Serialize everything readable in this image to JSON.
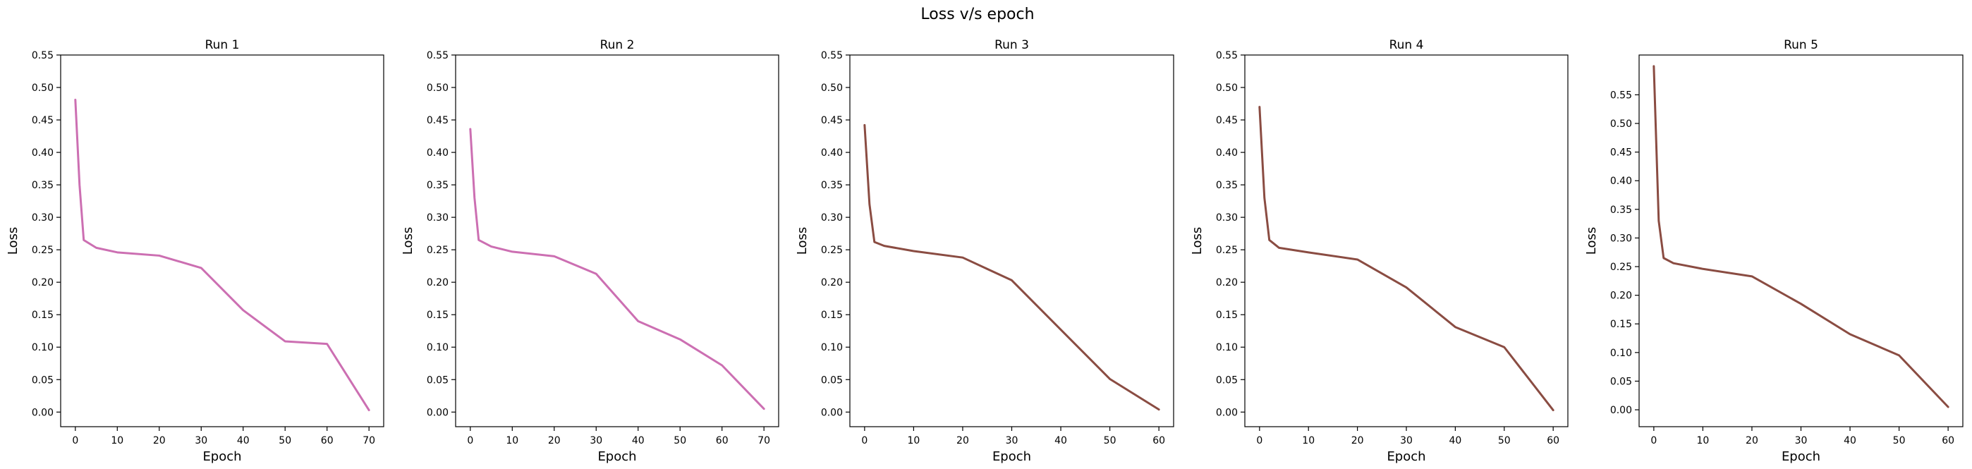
{
  "figure": {
    "title": "Loss v/s epoch"
  },
  "chart_data": [
    {
      "type": "line",
      "title": "Run 1",
      "xlabel": "Epoch",
      "ylabel": "Loss",
      "xlim": [
        -3.5,
        73.5
      ],
      "ylim": [
        -0.0225,
        0.55
      ],
      "xticks": [
        0,
        10,
        20,
        30,
        40,
        50,
        60,
        70
      ],
      "yticks": [
        0.0,
        0.05,
        0.1,
        0.15,
        0.2,
        0.25,
        0.3,
        0.35,
        0.4,
        0.45,
        0.5,
        0.55
      ],
      "grid": false,
      "color": "#cc6fb2",
      "series": [
        {
          "x": [
            0,
            1,
            2,
            5,
            10,
            20,
            30,
            40,
            50,
            60,
            70
          ],
          "values": [
            0.481,
            0.35,
            0.265,
            0.253,
            0.246,
            0.241,
            0.222,
            0.157,
            0.109,
            0.105,
            0.003
          ]
        }
      ]
    },
    {
      "type": "line",
      "title": "Run 2",
      "xlabel": "Epoch",
      "ylabel": "Loss",
      "xlim": [
        -3.5,
        73.5
      ],
      "ylim": [
        -0.0225,
        0.55
      ],
      "xticks": [
        0,
        10,
        20,
        30,
        40,
        50,
        60,
        70
      ],
      "yticks": [
        0.0,
        0.05,
        0.1,
        0.15,
        0.2,
        0.25,
        0.3,
        0.35,
        0.4,
        0.45,
        0.5,
        0.55
      ],
      "grid": false,
      "color": "#cc6fb2",
      "series": [
        {
          "x": [
            0,
            1,
            2,
            5,
            10,
            20,
            30,
            40,
            50,
            60,
            70
          ],
          "values": [
            0.436,
            0.33,
            0.265,
            0.255,
            0.247,
            0.24,
            0.213,
            0.14,
            0.112,
            0.072,
            0.005
          ]
        }
      ]
    },
    {
      "type": "line",
      "title": "Run 3",
      "xlabel": "Epoch",
      "ylabel": "Loss",
      "xlim": [
        -3,
        63
      ],
      "ylim": [
        -0.0225,
        0.55
      ],
      "xticks": [
        0,
        10,
        20,
        30,
        40,
        50,
        60
      ],
      "yticks": [
        0.0,
        0.05,
        0.1,
        0.15,
        0.2,
        0.25,
        0.3,
        0.35,
        0.4,
        0.45,
        0.5,
        0.55
      ],
      "grid": false,
      "color": "#8a4c42",
      "series": [
        {
          "x": [
            0,
            1,
            2,
            4,
            10,
            20,
            30,
            40,
            50,
            60
          ],
          "values": [
            0.442,
            0.32,
            0.262,
            0.256,
            0.248,
            0.238,
            0.203,
            0.127,
            0.051,
            0.004
          ]
        }
      ]
    },
    {
      "type": "line",
      "title": "Run 4",
      "xlabel": "Epoch",
      "ylabel": "Loss",
      "xlim": [
        -3,
        63
      ],
      "ylim": [
        -0.0225,
        0.55
      ],
      "xticks": [
        0,
        10,
        20,
        30,
        40,
        50,
        60
      ],
      "yticks": [
        0.0,
        0.05,
        0.1,
        0.15,
        0.2,
        0.25,
        0.3,
        0.35,
        0.4,
        0.45,
        0.5,
        0.55
      ],
      "grid": false,
      "color": "#8a4c42",
      "series": [
        {
          "x": [
            0,
            1,
            2,
            4,
            10,
            20,
            30,
            40,
            50,
            60
          ],
          "values": [
            0.47,
            0.33,
            0.265,
            0.253,
            0.246,
            0.235,
            0.192,
            0.131,
            0.1,
            0.003
          ]
        }
      ]
    },
    {
      "type": "line",
      "title": "Run 5",
      "xlabel": "Epoch",
      "ylabel": "Loss",
      "xlim": [
        -3,
        63
      ],
      "ylim": [
        -0.0295,
        0.6195
      ],
      "xticks": [
        0,
        10,
        20,
        30,
        40,
        50,
        60
      ],
      "yticks": [
        0.0,
        0.05,
        0.1,
        0.15,
        0.2,
        0.25,
        0.3,
        0.35,
        0.4,
        0.45,
        0.5,
        0.55
      ],
      "grid": false,
      "color": "#8a4c42",
      "series": [
        {
          "x": [
            0,
            1,
            2,
            4,
            10,
            20,
            30,
            40,
            50,
            60
          ],
          "values": [
            0.6,
            0.33,
            0.265,
            0.256,
            0.246,
            0.233,
            0.185,
            0.132,
            0.095,
            0.005
          ]
        }
      ]
    }
  ]
}
